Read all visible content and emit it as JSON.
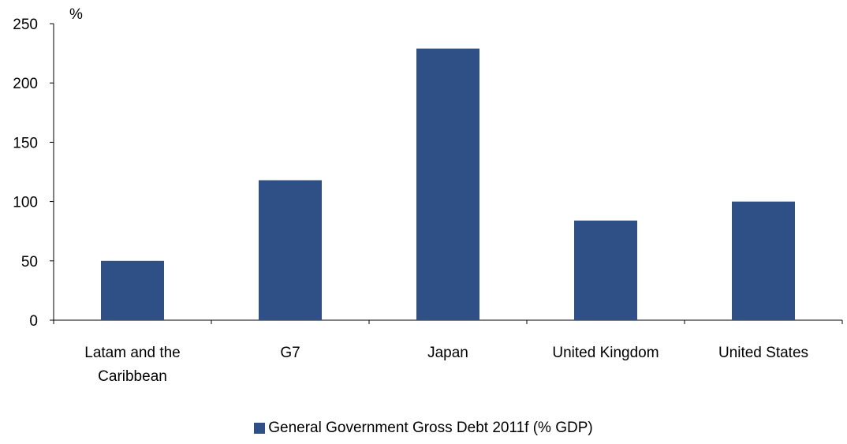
{
  "chart_data": {
    "type": "bar",
    "unit_label": "%",
    "categories": [
      "Latam and the Caribbean",
      "G7",
      "Japan",
      "United Kingdom",
      "United States"
    ],
    "category_lines": [
      [
        "Latam and the",
        "Caribbean"
      ],
      [
        "G7"
      ],
      [
        "Japan"
      ],
      [
        "United Kingdom"
      ],
      [
        "United States"
      ]
    ],
    "series": [
      {
        "name": "General Government Gross Debt 2011f (% GDP)",
        "values": [
          50,
          118,
          229,
          84,
          100
        ],
        "color": "#2f4f87"
      }
    ],
    "ylim": [
      0,
      250
    ],
    "yticks": [
      0,
      50,
      100,
      150,
      200,
      250
    ],
    "grid": false,
    "legend_position": "bottom"
  }
}
